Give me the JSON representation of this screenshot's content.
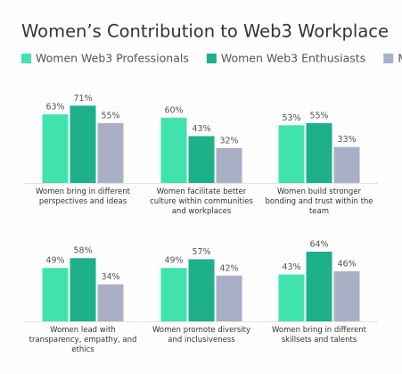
{
  "chart_data": {
    "type": "bar",
    "title": "Women’s Contribution to Web3 Workplace",
    "categories": [
      "Women bring in different perspectives and ideas",
      "Women facilitate better culture within communities and workplaces",
      "Women build stronger bonding and trust within the team",
      "Women lead with transparency, empathy, and ethics",
      "Women promote diversity and inclusiveness",
      "Women bring in different skillsets and talents"
    ],
    "series": [
      {
        "name": "Women Web3 Professionals",
        "color": "#40e3ae",
        "values": [
          63,
          60,
          53,
          49,
          49,
          43
        ],
        "value_labels": [
          "63%",
          "60%",
          "53%",
          "49%",
          "49%",
          "43%"
        ]
      },
      {
        "name": "Women Web3 Enthusiasts",
        "color": "#1db089",
        "values": [
          71,
          43,
          55,
          58,
          57,
          64
        ],
        "value_labels": [
          "71%",
          "43%",
          "55%",
          "58%",
          "57%",
          "64%"
        ]
      },
      {
        "name": "Men",
        "color": "#a9b0c5",
        "values": [
          55,
          32,
          33,
          34,
          42,
          46
        ],
        "value_labels": [
          "55%",
          "32%",
          "33%",
          "34%",
          "42%",
          "46%"
        ]
      }
    ]
  }
}
